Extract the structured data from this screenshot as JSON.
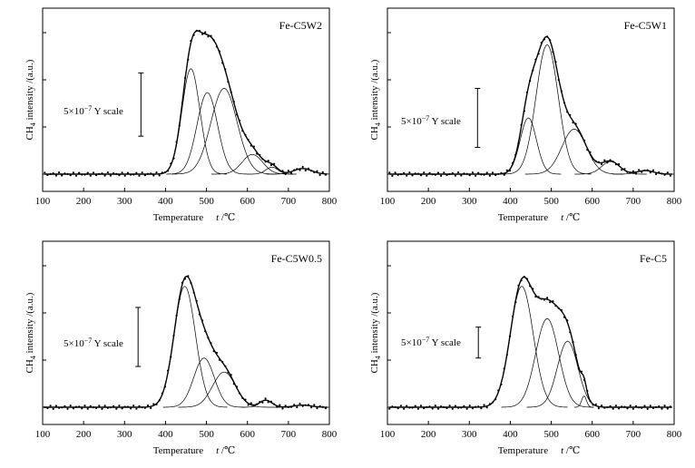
{
  "chart_data": [
    {
      "type": "line",
      "title": "Fe-C5W2",
      "xlabel_main": "Temperature",
      "xlabel_var": "t",
      "xlabel_unit": " /℃",
      "ylabel_pre": "CH",
      "ylabel_sub": "4",
      "ylabel_post": " intensity /(a.u.)",
      "scale_pre": "5×10",
      "scale_exp": "−7",
      "scale_post": " Y scale",
      "xlim": [
        100,
        800
      ],
      "xticks": [
        100,
        200,
        300,
        400,
        500,
        600,
        700,
        800
      ],
      "ylim": [
        0,
        1.1
      ],
      "scale_bar": {
        "x": 340,
        "y0": 0.27,
        "y1": 0.72
      },
      "peaks": [
        {
          "center": 462,
          "height": 0.75,
          "sigma": 22
        },
        {
          "center": 502,
          "height": 0.58,
          "sigma": 25
        },
        {
          "center": 543,
          "height": 0.61,
          "sigma": 32
        },
        {
          "center": 612,
          "height": 0.14,
          "sigma": 25
        },
        {
          "center": 660,
          "height": 0.05,
          "sigma": 15
        },
        {
          "center": 735,
          "height": 0.04,
          "sigma": 22
        }
      ]
    },
    {
      "type": "line",
      "title": "Fe-C5W1",
      "xlabel_main": "Temperature",
      "xlabel_var": "t",
      "xlabel_unit": " /℃",
      "ylabel_pre": "CH",
      "ylabel_sub": "4",
      "ylabel_post": " intensity /(a.u.)",
      "scale_pre": "5×10",
      "scale_exp": "−7",
      "scale_post": " Y scale",
      "xlim": [
        100,
        800
      ],
      "xticks": [
        100,
        200,
        300,
        400,
        500,
        600,
        700,
        800
      ],
      "ylim": [
        0,
        1.1
      ],
      "scale_bar": {
        "x": 320,
        "y0": 0.19,
        "y1": 0.61
      },
      "peaks": [
        {
          "center": 444,
          "height": 0.4,
          "sigma": 20
        },
        {
          "center": 490,
          "height": 0.92,
          "sigma": 27
        },
        {
          "center": 556,
          "height": 0.32,
          "sigma": 30
        },
        {
          "center": 645,
          "height": 0.09,
          "sigma": 22
        },
        {
          "center": 730,
          "height": 0.025,
          "sigma": 20
        }
      ]
    },
    {
      "type": "line",
      "title": "Fe-C5W0.5",
      "xlabel_main": "Temperature",
      "xlabel_var": "t",
      "xlabel_unit": " /℃",
      "ylabel_pre": "CH",
      "ylabel_sub": "4",
      "ylabel_post": " intensity /(a.u.)",
      "scale_pre": "5×10",
      "scale_exp": "−7",
      "scale_post": " Y scale",
      "xlim": [
        100,
        800
      ],
      "xticks": [
        100,
        200,
        300,
        400,
        500,
        600,
        700,
        800
      ],
      "ylim": [
        0,
        1.1
      ],
      "scale_bar": {
        "x": 333,
        "y0": 0.29,
        "y1": 0.71
      },
      "peaks": [
        {
          "center": 447,
          "height": 0.86,
          "sigma": 26
        },
        {
          "center": 494,
          "height": 0.35,
          "sigma": 25
        },
        {
          "center": 543,
          "height": 0.25,
          "sigma": 28
        },
        {
          "center": 645,
          "height": 0.05,
          "sigma": 15
        },
        {
          "center": 735,
          "height": 0.015,
          "sigma": 20
        }
      ]
    },
    {
      "type": "line",
      "title": "Fe-C5",
      "xlabel_main": "Temperature",
      "xlabel_var": "t",
      "xlabel_unit": " /℃",
      "ylabel_pre": "CH",
      "ylabel_sub": "4",
      "ylabel_post": " intensity /(a.u.)",
      "scale_pre": "5×10",
      "scale_exp": "−7",
      "scale_post": " Y scale",
      "xlim": [
        100,
        800
      ],
      "xticks": [
        100,
        200,
        300,
        400,
        500,
        600,
        700,
        800
      ],
      "ylim": [
        0,
        1.1
      ],
      "scale_bar": {
        "x": 322,
        "y0": 0.35,
        "y1": 0.57
      },
      "peaks": [
        {
          "center": 428,
          "height": 0.86,
          "sigma": 28
        },
        {
          "center": 490,
          "height": 0.63,
          "sigma": 28
        },
        {
          "center": 540,
          "height": 0.47,
          "sigma": 25
        },
        {
          "center": 580,
          "height": 0.08,
          "sigma": 6
        }
      ]
    }
  ]
}
